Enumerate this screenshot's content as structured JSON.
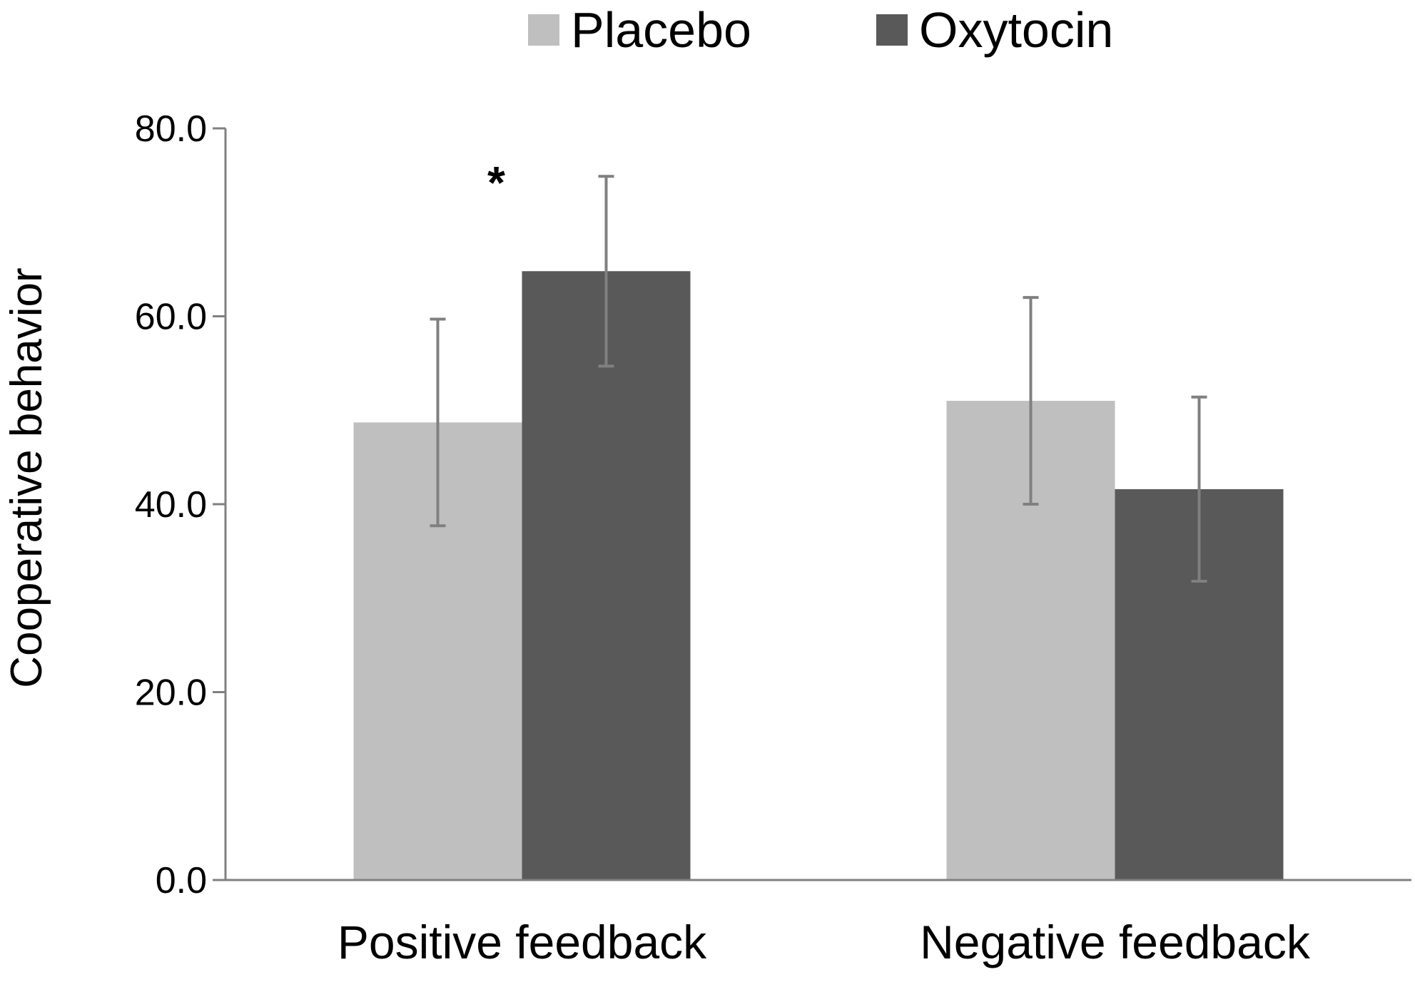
{
  "chart_data": {
    "type": "bar",
    "title": "",
    "xlabel": "",
    "ylabel": "Cooperative behavior",
    "categories": [
      "Positive feedback",
      "Negative feedback"
    ],
    "series": [
      {
        "name": "Placebo",
        "color": "#bfbfbf",
        "values": [
          48.7,
          51.0
        ],
        "errors": [
          11.0,
          11.0
        ]
      },
      {
        "name": "Oxytocin",
        "color": "#595959",
        "values": [
          64.8,
          41.6
        ],
        "errors": [
          10.1,
          9.8
        ]
      }
    ],
    "ylim": [
      0,
      80
    ],
    "yticks": [
      "0.0",
      "20.0",
      "40.0",
      "60.0",
      "80.0"
    ],
    "grid": false,
    "legend_position": "top-center",
    "annotations": [
      {
        "text": "*",
        "category": "Positive feedback",
        "near_value": 75
      }
    ],
    "axis_color": "#808080",
    "errorbar_color": "#808080"
  }
}
